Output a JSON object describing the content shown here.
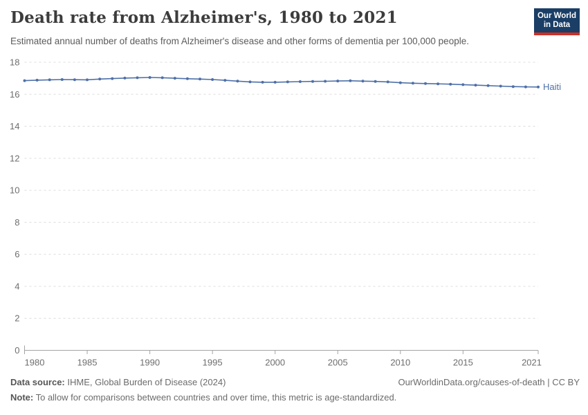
{
  "header": {
    "title": "Death rate from Alzheimer's, 1980 to 2021",
    "subtitle": "Estimated annual number of deaths from Alzheimer's disease and other forms of dementia per 100,000 people.",
    "logo": {
      "line1": "Our World",
      "line2": "in Data",
      "bg_color": "#1a3e66",
      "stripe_color": "#cf2f22"
    }
  },
  "chart_data": {
    "type": "line",
    "title": "Death rate from Alzheimer's, 1980 to 2021",
    "xlabel": "",
    "ylabel": "",
    "xlim": [
      1980,
      2021
    ],
    "ylim": [
      0,
      18
    ],
    "grid": "horizontal-dashed",
    "legend_position": "end-of-line",
    "xticks": [
      1980,
      1985,
      1990,
      1995,
      2000,
      2005,
      2010,
      2015,
      2021
    ],
    "yticks": [
      0,
      2,
      4,
      6,
      8,
      10,
      12,
      14,
      16,
      18
    ],
    "x": [
      1980,
      1981,
      1982,
      1983,
      1984,
      1985,
      1986,
      1987,
      1988,
      1989,
      1990,
      1991,
      1992,
      1993,
      1994,
      1995,
      1996,
      1997,
      1998,
      1999,
      2000,
      2001,
      2002,
      2003,
      2004,
      2005,
      2006,
      2007,
      2008,
      2009,
      2010,
      2011,
      2012,
      2013,
      2014,
      2015,
      2016,
      2017,
      2018,
      2019,
      2020,
      2021
    ],
    "series": [
      {
        "name": "Haiti",
        "color": "#4e70a8",
        "values": [
          16.85,
          16.88,
          16.9,
          16.92,
          16.91,
          16.9,
          16.95,
          16.98,
          17.01,
          17.03,
          17.05,
          17.03,
          17.0,
          16.97,
          16.95,
          16.92,
          16.87,
          16.82,
          16.77,
          16.75,
          16.75,
          16.77,
          16.79,
          16.8,
          16.81,
          16.83,
          16.84,
          16.82,
          16.8,
          16.77,
          16.72,
          16.69,
          16.67,
          16.65,
          16.63,
          16.6,
          16.57,
          16.54,
          16.51,
          16.48,
          16.46,
          16.45
        ]
      }
    ],
    "style": {
      "grid_color": "#dcdcdc",
      "axis_color": "#a3a3a3",
      "tick_label_color": "#6e6e6e"
    }
  },
  "footer": {
    "source_label": "Data source:",
    "source_text": " IHME, Global Burden of Disease (2024)",
    "link_text": "OurWorldinData.org/causes-of-death | CC BY",
    "note_label": "Note:",
    "note_text": " To allow for comparisons between countries and over time, this metric is age-standardized."
  }
}
